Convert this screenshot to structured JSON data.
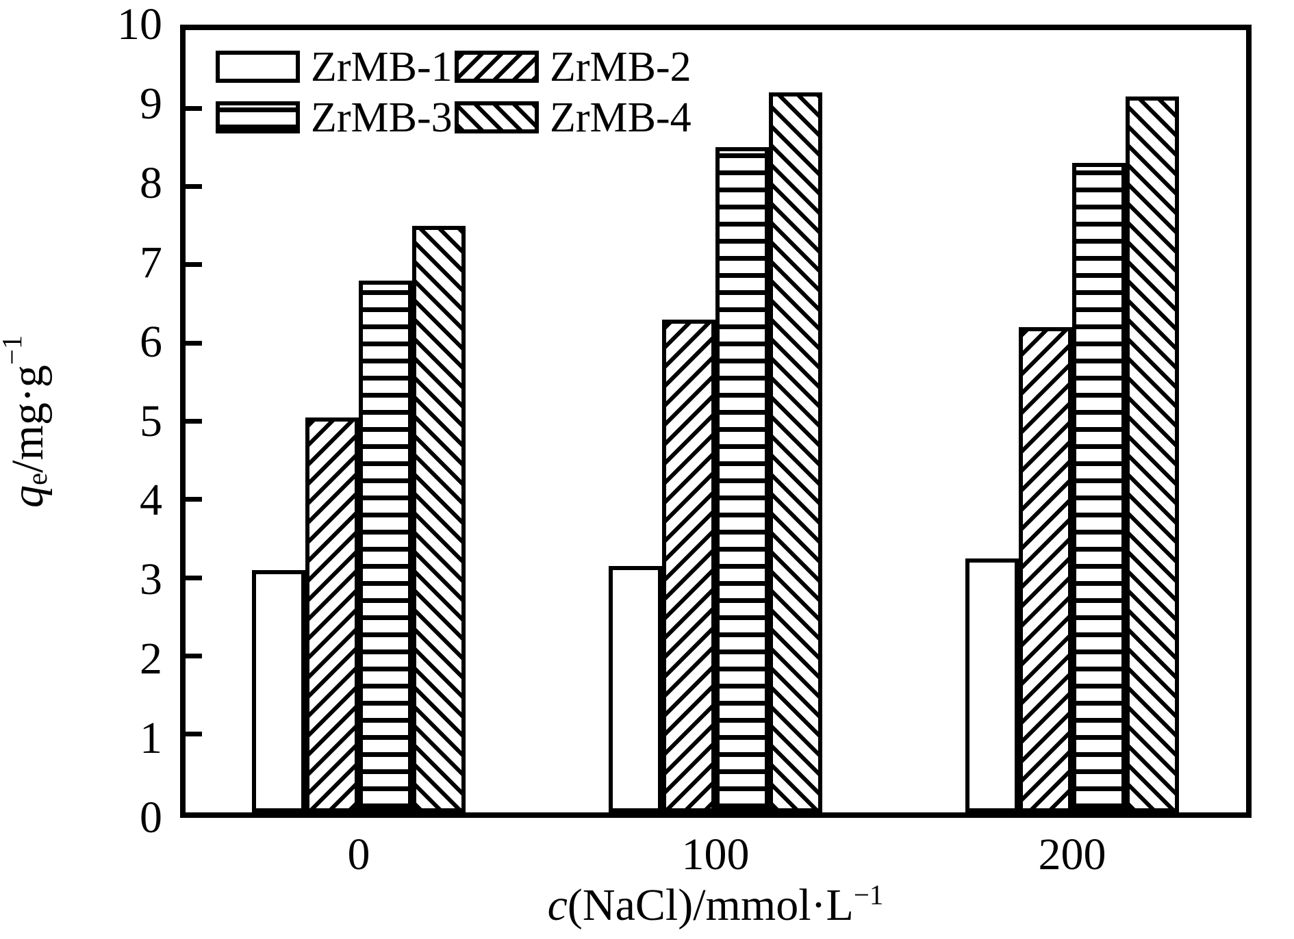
{
  "figure": {
    "background": "#ffffff",
    "foreground": "#000000"
  },
  "axes": {
    "y": {
      "title_var": "q",
      "title_sub": "e",
      "title_rest": "/mg·g",
      "title_sup": "−1",
      "tick_labels": [
        "0",
        "1",
        "2",
        "3",
        "4",
        "5",
        "6",
        "7",
        "8",
        "9",
        "10"
      ]
    },
    "x": {
      "title_var": "c",
      "title_rest": "(NaCl)/mmol·L",
      "title_sup": "−1",
      "tick_labels": [
        "0",
        "100",
        "200"
      ]
    }
  },
  "chart_data": {
    "type": "bar",
    "title": "",
    "categories": [
      "0",
      "100",
      "200"
    ],
    "series": [
      {
        "name": "ZrMB-1",
        "pattern": "plain",
        "values": [
          3.1,
          3.15,
          3.25
        ]
      },
      {
        "name": "ZrMB-2",
        "pattern": "diag-forward",
        "values": [
          5.05,
          6.3,
          6.2
        ]
      },
      {
        "name": "ZrMB-3",
        "pattern": "horizontal",
        "values": [
          6.8,
          8.5,
          8.3
        ]
      },
      {
        "name": "ZrMB-4",
        "pattern": "diag-backward",
        "values": [
          7.5,
          9.2,
          9.15
        ]
      }
    ],
    "xlabel": "c(NaCl)/mmol·L−1",
    "ylabel": "qe/mg·g−1",
    "ylim": [
      0,
      10
    ],
    "ytick_step": 1,
    "grid": false,
    "legend_position": "top-left",
    "bar_fill_color": "#ffffff",
    "bar_line_color": "#000000"
  }
}
